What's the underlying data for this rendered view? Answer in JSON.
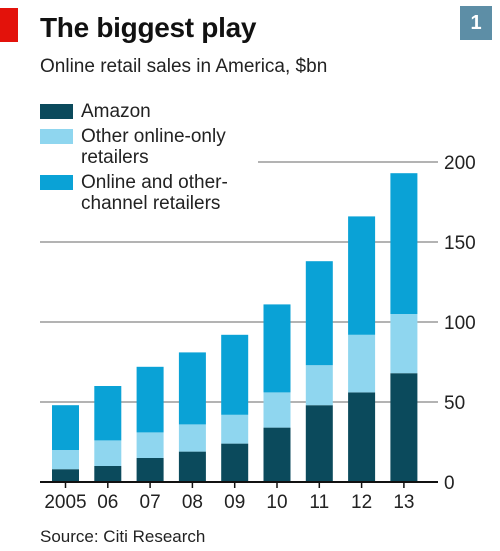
{
  "header": {
    "title": "The biggest play",
    "subtitle": "Online retail sales in America, $bn",
    "badge": "1"
  },
  "source": "Source: Citi Research",
  "colors": {
    "amazon": "#0b4a5c",
    "other_online_only": "#8fd6ef",
    "online_and_other_channel": "#0aa2d6",
    "gridline": "#b3b3b3",
    "accent_red": "#e3120b",
    "badge": "#5d8ea6"
  },
  "legend": [
    {
      "label_lines": [
        "Amazon"
      ],
      "color": "#0b4a5c"
    },
    {
      "label_lines": [
        "Other online-only",
        "retailers"
      ],
      "color": "#8fd6ef"
    },
    {
      "label_lines": [
        "Online and other-",
        "channel retailers"
      ],
      "color": "#0aa2d6"
    }
  ],
  "chart_data": {
    "type": "bar",
    "stacked": true,
    "categories": [
      "2005",
      "06",
      "07",
      "08",
      "09",
      "10",
      "11",
      "12",
      "13"
    ],
    "series": [
      {
        "name": "Amazon",
        "values": [
          8,
          10,
          15,
          19,
          24,
          34,
          48,
          56,
          68
        ]
      },
      {
        "name": "Other online-only retailers",
        "values": [
          12,
          16,
          16,
          17,
          18,
          22,
          25,
          36,
          37
        ]
      },
      {
        "name": "Online and other-channel retailers",
        "values": [
          28,
          34,
          41,
          45,
          50,
          55,
          65,
          74,
          88
        ]
      }
    ],
    "ylim": [
      0,
      200
    ],
    "yticks": [
      0,
      50,
      100,
      150,
      200
    ],
    "ytick_labels": [
      "0",
      "50",
      "100",
      "150",
      "200"
    ],
    "y_axis_side": "right",
    "grid": true
  }
}
